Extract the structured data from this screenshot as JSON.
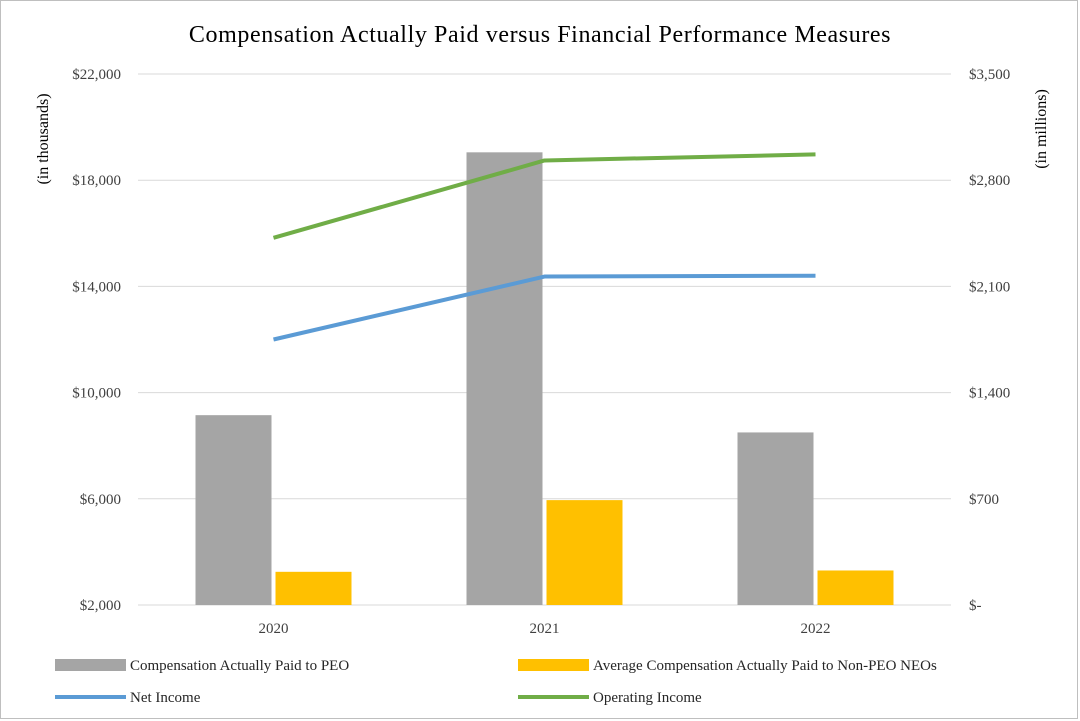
{
  "chart_data": {
    "type": "bar",
    "title": "Compensation Actually Paid versus Financial Performance Measures",
    "categories": [
      "2020",
      "2021",
      "2022"
    ],
    "y_left": {
      "label": "(in thousands)",
      "lim": [
        2000,
        22000
      ],
      "ticks": [
        2000,
        6000,
        10000,
        14000,
        18000,
        22000
      ],
      "tick_labels": [
        "$2,000",
        "$6,000",
        "$10,000",
        "$14,000",
        "$18,000",
        "$22,000"
      ]
    },
    "y_right": {
      "label": "(in millions)",
      "lim": [
        0,
        3500
      ],
      "ticks": [
        0,
        700,
        1400,
        2100,
        2800,
        3500
      ],
      "tick_labels": [
        "$-",
        "$700",
        "$1,400",
        "$2,100",
        "$2,800",
        "$3,500"
      ]
    },
    "grid": true,
    "legend_position": "bottom",
    "series": [
      {
        "name": "Compensation Actually Paid to PEO",
        "type": "bar",
        "axis": "left",
        "color": "#a5a5a5",
        "values": [
          9150,
          19050,
          8500
        ]
      },
      {
        "name": "Average Compensation Actually Paid to Non-PEO NEOs",
        "type": "bar",
        "axis": "left",
        "color": "#ffc000",
        "values": [
          3250,
          5950,
          3300
        ]
      },
      {
        "name": "Net Income",
        "type": "line",
        "axis": "right",
        "color": "#5b9bd5",
        "values": [
          1750,
          2165,
          2170
        ]
      },
      {
        "name": "Operating Income",
        "type": "line",
        "axis": "right",
        "color": "#70ad47",
        "values": [
          2420,
          2930,
          2970
        ]
      }
    ]
  }
}
